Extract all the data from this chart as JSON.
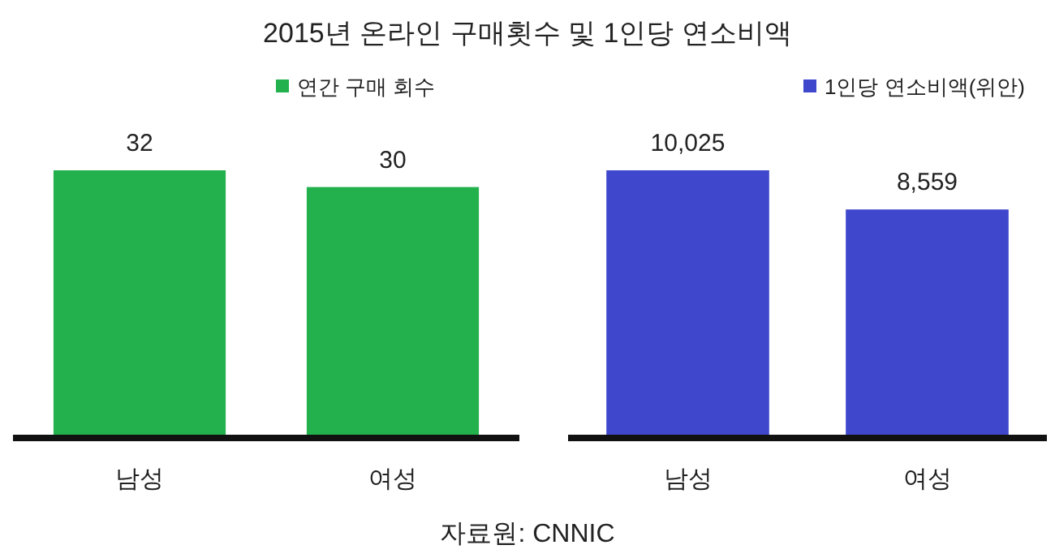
{
  "chart_data": [
    {
      "type": "bar",
      "title": "2015년 온라인 구매횟수 및 1인당 연소비액",
      "categories": [
        "남성",
        "여성"
      ],
      "series": [
        {
          "name": "연간 구매 회수",
          "color": "#22b14c",
          "values": [
            32,
            30
          ]
        }
      ],
      "data_labels": true,
      "legend": "top right"
    },
    {
      "type": "bar",
      "categories": [
        "남성",
        "여성"
      ],
      "series": [
        {
          "name": "1인당 연소비액(위안)",
          "color": "#3f48cc",
          "values": [
            10025,
            8559
          ],
          "value_labels": [
            "10,025",
            "8,559"
          ]
        }
      ],
      "legend": "top right",
      "annotations": [
        "자료원: CNNIC"
      ]
    }
  ]
}
